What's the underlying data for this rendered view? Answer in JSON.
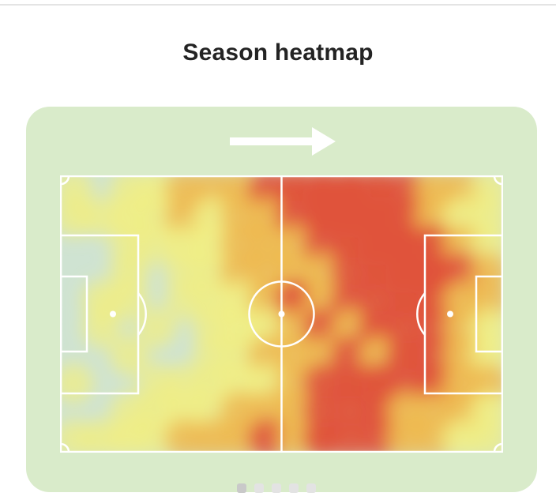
{
  "header": {
    "title": "Season heatmap"
  },
  "colors": {
    "card_background": "#d9ebca",
    "pitch_base": "#cfe3d2",
    "heat_low": "#f3ef7d",
    "heat_mid": "#f0b84a",
    "heat_high": "#e0523a",
    "lines": "#ffffff"
  },
  "icons": {
    "direction": "arrow-right-icon"
  },
  "heatmap": {
    "attack_direction": "right",
    "grid_cols": 16,
    "grid_rows": 10,
    "intensity": [
      [
        0.3,
        0.2,
        0.4,
        0.5,
        0.6,
        0.6,
        0.7,
        0.8,
        0.9,
        1.0,
        1.0,
        0.9,
        0.8,
        0.7,
        0.6,
        0.4
      ],
      [
        0.4,
        0.3,
        0.5,
        0.4,
        0.6,
        0.5,
        0.6,
        0.7,
        0.8,
        1.0,
        1.0,
        1.0,
        0.9,
        0.7,
        0.5,
        0.4
      ],
      [
        0.2,
        0.1,
        0.3,
        0.3,
        0.5,
        0.5,
        0.6,
        0.7,
        0.6,
        0.8,
        0.9,
        1.0,
        1.0,
        0.9,
        0.6,
        0.4
      ],
      [
        0.1,
        0.2,
        0.4,
        0.2,
        0.3,
        0.4,
        0.6,
        0.6,
        0.7,
        0.6,
        0.8,
        0.9,
        1.0,
        1.0,
        0.8,
        0.6
      ],
      [
        0.2,
        0.4,
        0.3,
        0.2,
        0.3,
        0.4,
        0.5,
        0.6,
        0.9,
        0.7,
        0.8,
        0.8,
        0.9,
        0.9,
        0.7,
        0.6
      ],
      [
        0.1,
        0.3,
        0.2,
        0.3,
        0.2,
        0.4,
        0.5,
        0.5,
        0.6,
        0.8,
        0.7,
        0.9,
        0.8,
        0.8,
        0.6,
        0.5
      ],
      [
        0.2,
        0.2,
        0.3,
        0.2,
        0.2,
        0.3,
        0.4,
        0.6,
        0.6,
        0.7,
        0.8,
        0.7,
        0.9,
        0.8,
        0.7,
        0.5
      ],
      [
        0.3,
        0.1,
        0.2,
        0.3,
        0.3,
        0.4,
        0.5,
        0.5,
        0.6,
        0.8,
        0.9,
        0.9,
        0.8,
        0.9,
        0.7,
        0.6
      ],
      [
        0.2,
        0.2,
        0.3,
        0.4,
        0.5,
        0.4,
        0.6,
        0.7,
        0.7,
        0.8,
        0.8,
        0.9,
        0.7,
        0.6,
        0.7,
        0.5
      ],
      [
        0.3,
        0.4,
        0.5,
        0.4,
        0.6,
        0.7,
        0.7,
        0.8,
        0.7,
        0.9,
        0.8,
        0.8,
        0.7,
        0.6,
        0.5,
        0.4
      ]
    ]
  },
  "pager": {
    "count": 5,
    "active_index": 0
  }
}
